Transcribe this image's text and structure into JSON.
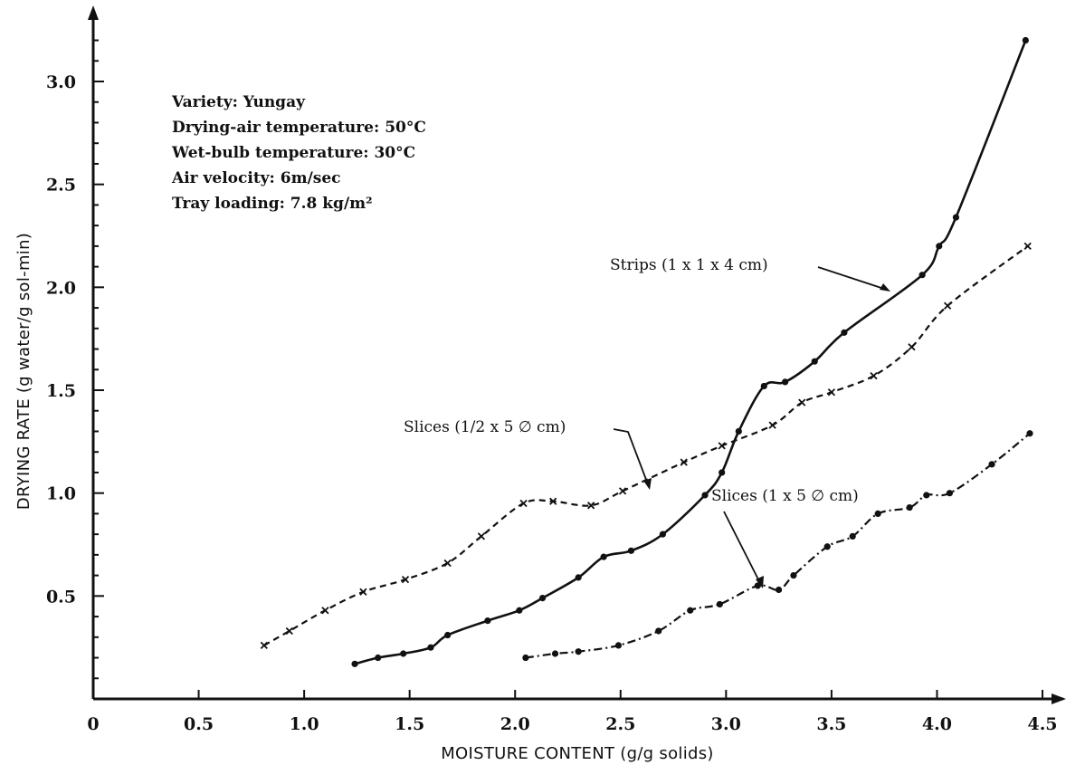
{
  "chart_data": {
    "type": "line",
    "xlabel": "MOISTURE CONTENT (g/g solids)",
    "ylabel": "DRYING RATE (g water/g sol-min)",
    "xlim": [
      0,
      4.7
    ],
    "ylim": [
      0,
      3.3
    ],
    "x_ticks": [
      {
        "value": 0,
        "label": "0"
      },
      {
        "value": 0.5,
        "label": "0.5"
      },
      {
        "value": 1.0,
        "label": "1.0"
      },
      {
        "value": 1.5,
        "label": "1.5"
      },
      {
        "value": 2.0,
        "label": "2.0"
      },
      {
        "value": 2.5,
        "label": "2.5"
      },
      {
        "value": 3.0,
        "label": "3.0"
      },
      {
        "value": 3.5,
        "label": "3.5"
      },
      {
        "value": 4.0,
        "label": "4.0"
      },
      {
        "value": 4.5,
        "label": "4.5"
      }
    ],
    "y_ticks": [
      {
        "value": 0.5,
        "label": "0.5"
      },
      {
        "value": 1.0,
        "label": "1.0"
      },
      {
        "value": 1.5,
        "label": "1.5"
      },
      {
        "value": 2.0,
        "label": "2.0"
      },
      {
        "value": 2.5,
        "label": "2.5"
      },
      {
        "value": 3.0,
        "label": "3.0"
      }
    ],
    "grid": false,
    "annotations": [
      "Variety: Yungay",
      "Drying-air temperature: 50°C",
      "Wet-bulb temperature: 30°C",
      "Air velocity: 6m/sec",
      "Tray loading: 7.8 kg/m²"
    ],
    "series": [
      {
        "name": "Strips (1 x 1 x 4 cm)",
        "line_style": "solid",
        "marker": "dot",
        "points": [
          [
            1.24,
            0.17
          ],
          [
            1.35,
            0.2
          ],
          [
            1.47,
            0.22
          ],
          [
            1.6,
            0.25
          ],
          [
            1.68,
            0.31
          ],
          [
            1.87,
            0.38
          ],
          [
            2.02,
            0.43
          ],
          [
            2.13,
            0.49
          ],
          [
            2.3,
            0.59
          ],
          [
            2.42,
            0.69
          ],
          [
            2.55,
            0.72
          ],
          [
            2.7,
            0.8
          ],
          [
            2.9,
            0.99
          ],
          [
            2.98,
            1.1
          ],
          [
            3.06,
            1.3
          ],
          [
            3.18,
            1.52
          ],
          [
            3.28,
            1.54
          ],
          [
            3.42,
            1.64
          ],
          [
            3.56,
            1.78
          ],
          [
            3.93,
            2.06
          ],
          [
            4.01,
            2.2
          ],
          [
            4.09,
            2.34
          ],
          [
            4.42,
            3.2
          ]
        ],
        "label_text": "Strips (1 x 1 x 4 cm)"
      },
      {
        "name": "Slices (1/2 x 5 ∅ cm)",
        "line_style": "dashed",
        "marker": "x",
        "points": [
          [
            0.81,
            0.26
          ],
          [
            0.93,
            0.33
          ],
          [
            1.1,
            0.43
          ],
          [
            1.28,
            0.52
          ],
          [
            1.48,
            0.58
          ],
          [
            1.68,
            0.66
          ],
          [
            1.84,
            0.79
          ],
          [
            2.04,
            0.95
          ],
          [
            2.18,
            0.96
          ],
          [
            2.36,
            0.94
          ],
          [
            2.51,
            1.01
          ],
          [
            2.8,
            1.15
          ],
          [
            2.98,
            1.23
          ],
          [
            3.22,
            1.33
          ],
          [
            3.36,
            1.44
          ],
          [
            3.5,
            1.49
          ],
          [
            3.7,
            1.57
          ],
          [
            3.88,
            1.71
          ],
          [
            4.05,
            1.91
          ],
          [
            4.43,
            2.2
          ]
        ],
        "label_text": "Slices (1/2 x 5 ∅ cm)"
      },
      {
        "name": "Slices (1 x 5 ∅ cm)",
        "line_style": "dashdot",
        "marker": "dot",
        "points": [
          [
            2.05,
            0.2
          ],
          [
            2.19,
            0.22
          ],
          [
            2.3,
            0.23
          ],
          [
            2.49,
            0.26
          ],
          [
            2.68,
            0.33
          ],
          [
            2.83,
            0.43
          ],
          [
            2.97,
            0.46
          ],
          [
            3.15,
            0.55
          ],
          [
            3.25,
            0.53
          ],
          [
            3.32,
            0.6
          ],
          [
            3.48,
            0.74
          ],
          [
            3.6,
            0.79
          ],
          [
            3.72,
            0.9
          ],
          [
            3.87,
            0.93
          ],
          [
            3.95,
            0.99
          ],
          [
            4.06,
            1.0
          ],
          [
            4.26,
            1.14
          ],
          [
            4.44,
            1.29
          ]
        ],
        "label_text": "Slices (1 x 5 ∅ cm)"
      }
    ]
  }
}
